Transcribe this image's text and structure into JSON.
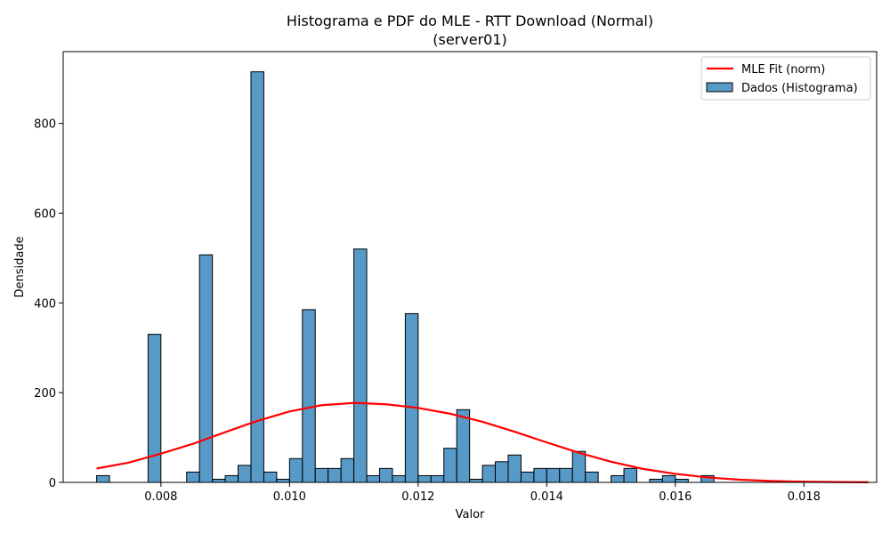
{
  "chart_data": {
    "type": "bar",
    "title": "Histograma e PDF do MLE - RTT Download (Normal)",
    "subtitle": "(server01)",
    "xlabel": "Valor",
    "ylabel": "Densidade",
    "xlim": [
      0.00648,
      0.01913
    ],
    "ylim": [
      0,
      960
    ],
    "x_ticks": [
      "0.008",
      "0.010",
      "0.012",
      "0.014",
      "0.016",
      "0.018"
    ],
    "x_tick_values": [
      0.008,
      0.01,
      0.012,
      0.014,
      0.016,
      0.018
    ],
    "y_ticks": [
      "0",
      "200",
      "400",
      "600",
      "800"
    ],
    "y_tick_values": [
      0,
      200,
      400,
      600,
      800
    ],
    "grid": false,
    "legend_position": "top-right",
    "bin_start": 0.007,
    "bin_width": 0.0002,
    "series": [
      {
        "name": "Dados (Histograma)",
        "kind": "histogram",
        "color": "#5799c7",
        "edge_color": "#000000",
        "values": [
          15,
          0,
          0,
          0,
          330,
          0,
          0,
          23,
          507,
          7,
          15,
          38,
          915,
          23,
          7,
          53,
          385,
          31,
          31,
          53,
          520,
          15,
          31,
          15,
          376,
          15,
          15,
          76,
          162,
          7,
          38,
          46,
          61,
          23,
          31,
          31,
          31,
          69,
          23,
          0,
          15,
          31,
          0,
          7,
          15,
          7,
          0,
          15
        ]
      },
      {
        "name": "MLE Fit (norm)",
        "kind": "line",
        "color": "#ff0000",
        "x": [
          0.007,
          0.0075,
          0.008,
          0.0085,
          0.009,
          0.0095,
          0.01,
          0.0105,
          0.011,
          0.0112,
          0.0115,
          0.012,
          0.0125,
          0.013,
          0.0135,
          0.014,
          0.0145,
          0.015,
          0.0155,
          0.016,
          0.0165,
          0.017,
          0.0175,
          0.018,
          0.0185,
          0.019
        ],
        "y": [
          31,
          44,
          64,
          86,
          112,
          137,
          158,
          172,
          177,
          176,
          174,
          166,
          153,
          135,
          113,
          89,
          66,
          46,
          30,
          19,
          11,
          6,
          3,
          1.5,
          0.7,
          0.3
        ]
      }
    ]
  }
}
